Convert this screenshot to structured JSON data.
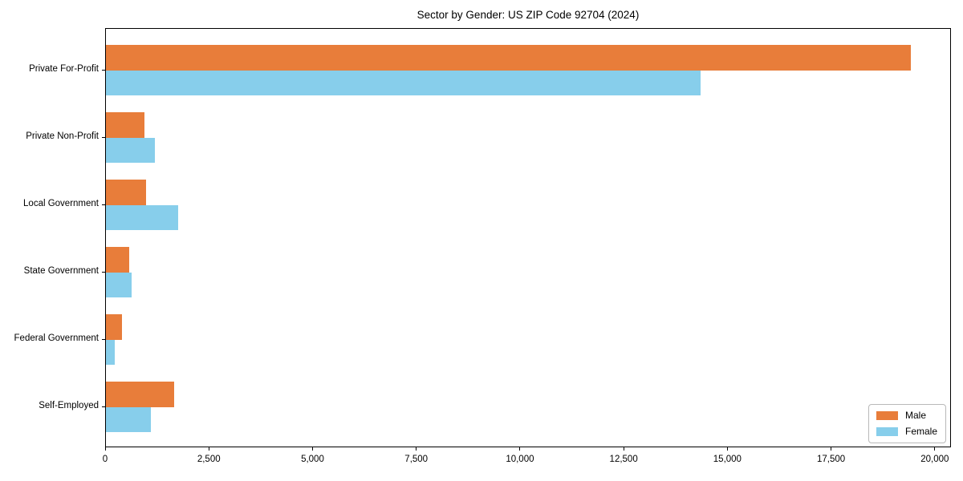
{
  "title": "Sector by Gender: US ZIP Code 92704 (2024)",
  "colors": {
    "male": "#e87d3a",
    "female": "#87ceeb",
    "axis": "#000000",
    "legend_border": "#b9b9b9",
    "background": "#ffffff"
  },
  "chart_data": {
    "type": "bar",
    "orientation": "horizontal",
    "title": "Sector by Gender: US ZIP Code 92704 (2024)",
    "xlabel": "",
    "ylabel": "",
    "grid": false,
    "legend_position": "lower right",
    "categories": [
      "Private For-Profit",
      "Private Non-Profit",
      "Local Government",
      "State Government",
      "Federal Government",
      "Self-Employed"
    ],
    "series": [
      {
        "name": "Male",
        "color": "#e87d3a",
        "values": [
          19400,
          930,
          970,
          560,
          390,
          1640
        ]
      },
      {
        "name": "Female",
        "color": "#87ceeb",
        "values": [
          14330,
          1180,
          1740,
          620,
          210,
          1080
        ]
      }
    ],
    "xlim": [
      0,
      20390
    ],
    "xticks": [
      0,
      2500,
      5000,
      7500,
      10000,
      12500,
      15000,
      17500,
      20000
    ]
  }
}
